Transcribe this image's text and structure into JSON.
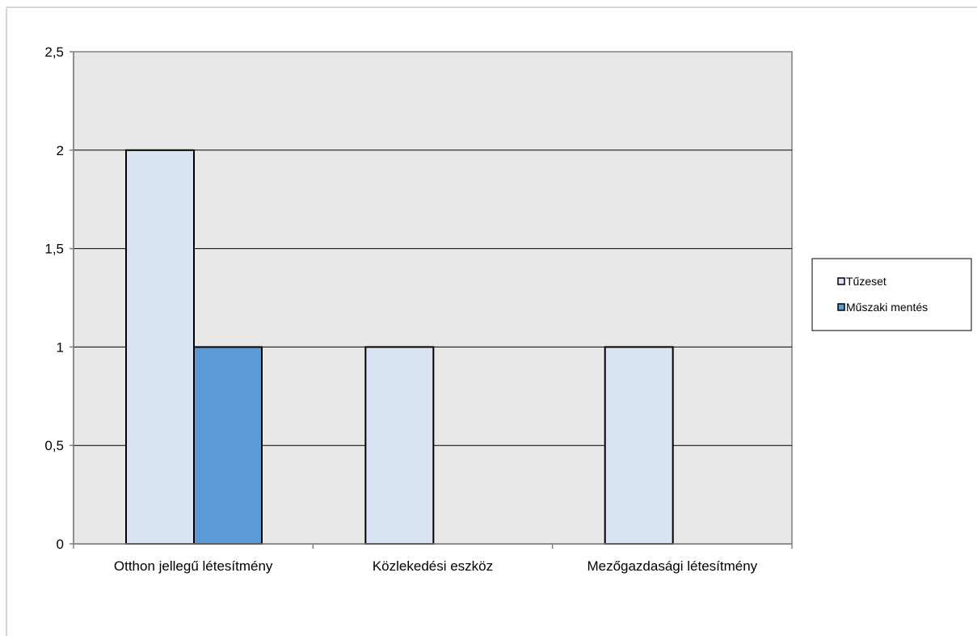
{
  "chart_data": {
    "type": "bar",
    "categories": [
      "Otthon jellegű létesítmény",
      "Közlekedési eszköz",
      "Mezőgazdasági létesítmény"
    ],
    "series": [
      {
        "name": "Tűzeset",
        "values": [
          2,
          1,
          1
        ],
        "color": "#dae3f3"
      },
      {
        "name": "Műszaki mentés",
        "values": [
          1,
          0,
          0
        ],
        "color": "#5b9bd5"
      }
    ],
    "ylim": [
      0,
      2.5
    ],
    "yticks": [
      0,
      0.5,
      1,
      1.5,
      2,
      2.5
    ],
    "ytick_labels": [
      "0",
      "0,5",
      "1",
      "1,5",
      "2",
      "2,5"
    ],
    "grid": true,
    "legend_position": "right",
    "plot_background": "#e8e8e8"
  }
}
